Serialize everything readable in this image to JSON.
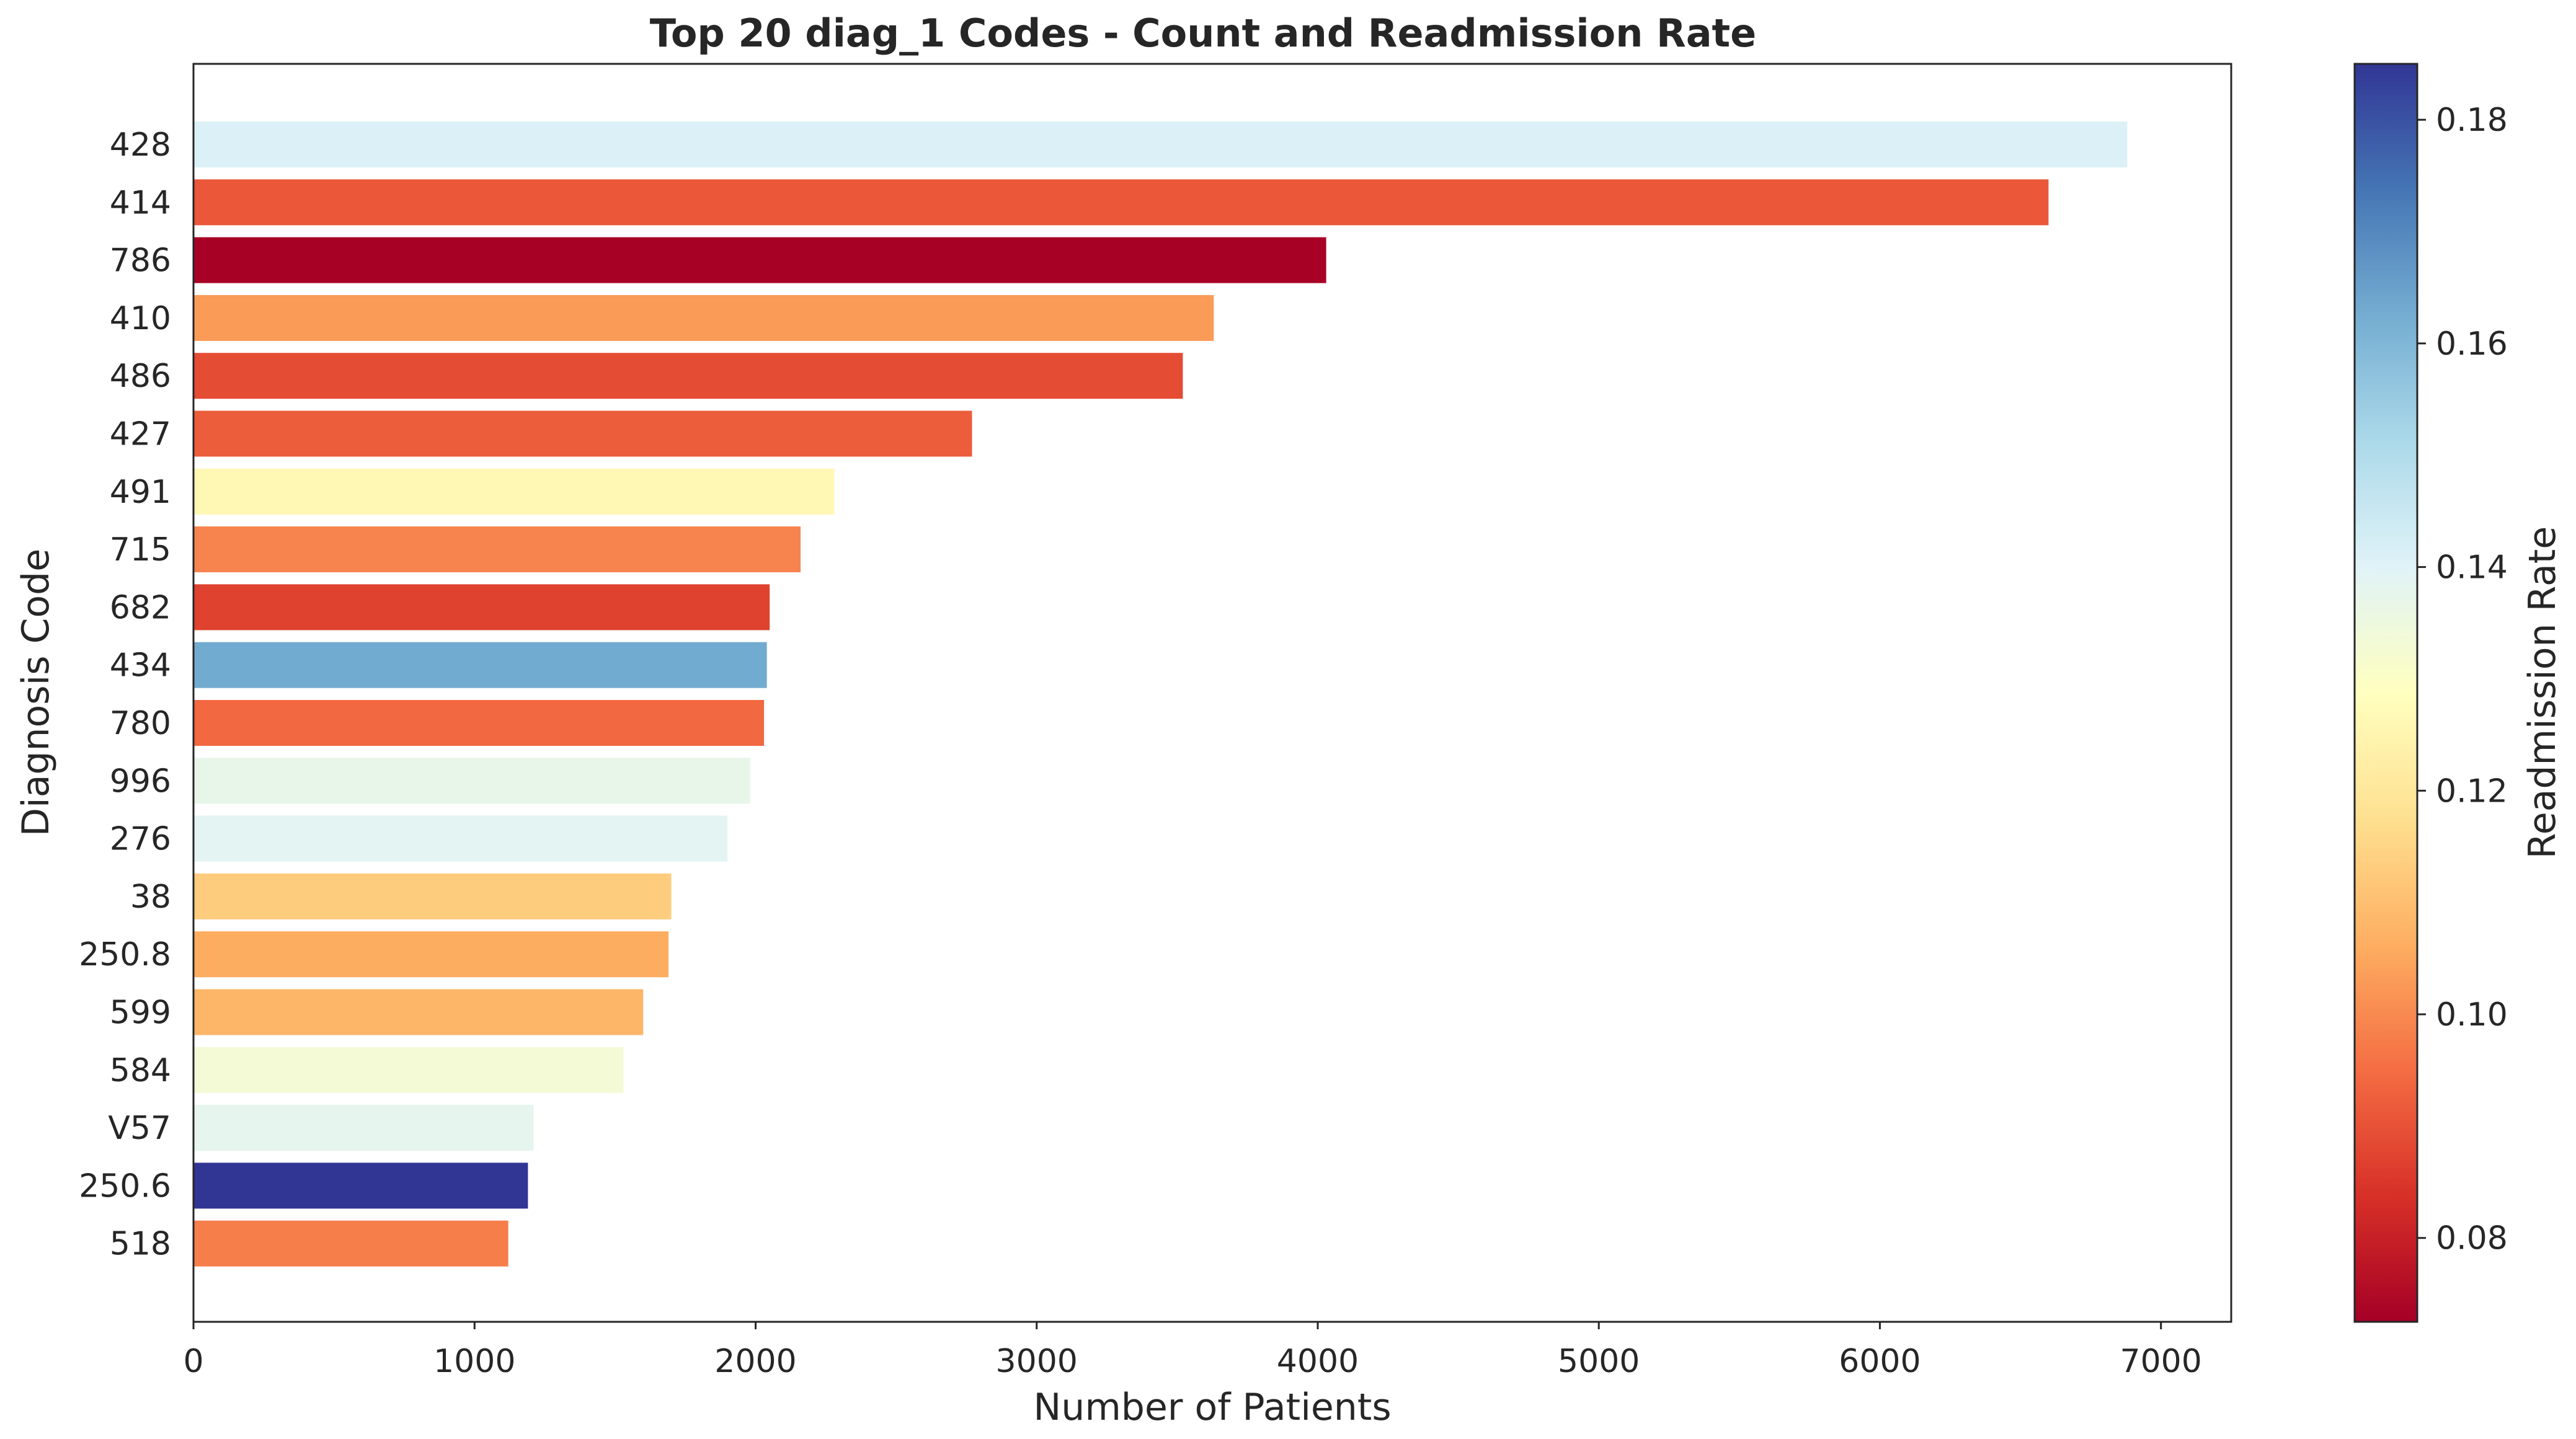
{
  "chart_data": {
    "type": "bar",
    "orientation": "horizontal",
    "title": "Top 20 diag_1 Codes - Count and Readmission Rate",
    "xlabel": "Number of Patients",
    "ylabel": "Diagnosis Code",
    "xlim": [
      0,
      7250
    ],
    "xticks": [
      0,
      1000,
      2000,
      3000,
      4000,
      5000,
      6000,
      7000
    ],
    "categories": [
      "428",
      "414",
      "786",
      "410",
      "486",
      "427",
      "491",
      "715",
      "682",
      "434",
      "780",
      "996",
      "276",
      "38",
      "250.8",
      "599",
      "584",
      "V57",
      "250.6",
      "518"
    ],
    "values": [
      6880,
      6600,
      4030,
      3630,
      3520,
      2770,
      2280,
      2160,
      2050,
      2040,
      2030,
      1980,
      1900,
      1700,
      1690,
      1600,
      1530,
      1210,
      1190,
      1120
    ],
    "readmission_rate": [
      0.141,
      0.091,
      0.073,
      0.103,
      0.089,
      0.092,
      0.126,
      0.099,
      0.087,
      0.163,
      0.094,
      0.137,
      0.139,
      0.113,
      0.106,
      0.108,
      0.133,
      0.138,
      0.185,
      0.098
    ],
    "grid": false,
    "colorbar": {
      "label": "Readmission Rate",
      "colormap": "RdYlBu",
      "range": [
        0.0725,
        0.185
      ],
      "ticks": [
        "0.08",
        "0.10",
        "0.12",
        "0.14",
        "0.16",
        "0.18"
      ]
    }
  }
}
